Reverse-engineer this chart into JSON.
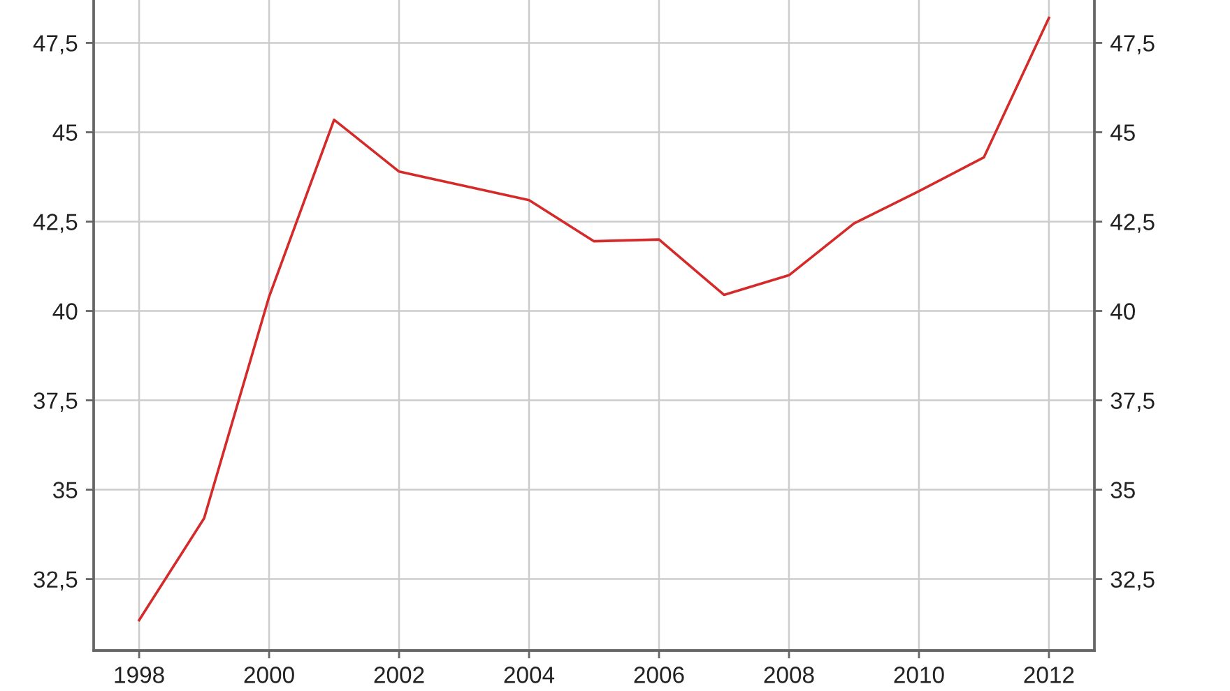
{
  "chart_data": {
    "type": "line",
    "x": [
      1998,
      1999,
      2000,
      2001,
      2002,
      2003,
      2004,
      2005,
      2006,
      2007,
      2008,
      2009,
      2010,
      2011,
      2012
    ],
    "series": [
      {
        "color": "#d42a2a",
        "values": [
          31.35,
          34.2,
          40.4,
          45.35,
          43.9,
          43.5,
          43.1,
          41.95,
          42.0,
          40.45,
          41.0,
          42.45,
          43.35,
          44.3,
          48.2
        ]
      }
    ],
    "xlim": [
      1997.3,
      2012.7
    ],
    "xticks": [
      1998,
      2000,
      2002,
      2004,
      2006,
      2008,
      2010,
      2012
    ],
    "ylim": [
      30.5,
      48.7
    ],
    "yticks": [
      {
        "value": 32.5,
        "label": "32,5"
      },
      35,
      {
        "value": 37.5,
        "label": "37,5"
      },
      40,
      {
        "value": 42.5,
        "label": "42,5"
      },
      45,
      {
        "value": 47.5,
        "label": "47,5"
      }
    ],
    "y2lim": [
      30.5,
      48.7
    ],
    "y2ticks": [
      {
        "value": 32.5,
        "label": "32,5"
      },
      35,
      {
        "value": 37.5,
        "label": "37,5"
      },
      40,
      {
        "value": 42.5,
        "label": "42,5"
      },
      45,
      {
        "value": 47.5,
        "label": "47,5"
      }
    ],
    "grid": true
  }
}
